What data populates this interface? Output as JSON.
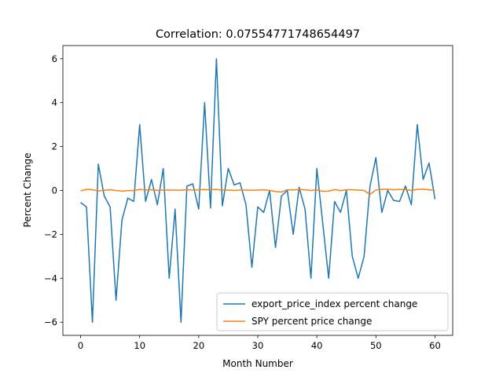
{
  "chart_data": {
    "type": "line",
    "title": "Correlation: 0.07554771748654497",
    "xlabel": "Month Number",
    "ylabel": "Percent Change",
    "xlim": [
      -3,
      63
    ],
    "ylim": [
      -6.6,
      6.6
    ],
    "xticks": [
      0,
      10,
      20,
      30,
      40,
      50,
      60
    ],
    "yticks": [
      -6,
      -4,
      -2,
      0,
      2,
      4,
      6
    ],
    "xtick_labels": [
      "0",
      "10",
      "20",
      "30",
      "40",
      "50",
      "60"
    ],
    "ytick_labels": [
      "−6",
      "−4",
      "−2",
      "0",
      "2",
      "4",
      "6"
    ],
    "grid": false,
    "legend_position": "lower-right",
    "series": [
      {
        "name": "export_price_index percent change",
        "color": "#1f77b4",
        "x": [
          0,
          1,
          2,
          3,
          4,
          5,
          6,
          7,
          8,
          9,
          10,
          11,
          12,
          13,
          14,
          15,
          16,
          17,
          18,
          19,
          20,
          21,
          22,
          23,
          24,
          25,
          26,
          27,
          28,
          29,
          30,
          31,
          32,
          33,
          34,
          35,
          36,
          37,
          38,
          39,
          40,
          41,
          42,
          43,
          44,
          45,
          46,
          47,
          48,
          49,
          50,
          51,
          52,
          53,
          54,
          55,
          56,
          57,
          58,
          59,
          60
        ],
        "values": [
          -0.55,
          -0.75,
          -6.0,
          1.2,
          -0.25,
          -0.75,
          -5.0,
          -1.35,
          -0.35,
          -0.5,
          3.0,
          -0.5,
          0.5,
          -0.65,
          1.0,
          -4.0,
          -0.85,
          -6.0,
          0.2,
          0.3,
          -0.85,
          4.0,
          -0.8,
          6.0,
          -0.7,
          1.0,
          0.25,
          0.35,
          -0.65,
          -3.5,
          -0.75,
          -1.0,
          0.0,
          -2.6,
          -0.25,
          0.0,
          -2.0,
          0.15,
          -0.85,
          -4.0,
          1.0,
          -1.5,
          -4.0,
          -0.5,
          -1.0,
          0.0,
          -3.0,
          -4.0,
          -3.0,
          0.2,
          1.5,
          -1.0,
          0.0,
          -0.45,
          -0.5,
          0.2,
          -0.65,
          3.0,
          0.5,
          1.25,
          -0.4
        ]
      },
      {
        "name": "SPY percent price change",
        "color": "#ff7f0e",
        "x": [
          0,
          1,
          2,
          3,
          4,
          5,
          6,
          7,
          8,
          9,
          10,
          11,
          12,
          13,
          14,
          15,
          16,
          17,
          18,
          19,
          20,
          21,
          22,
          23,
          24,
          25,
          26,
          27,
          28,
          29,
          30,
          31,
          32,
          33,
          34,
          35,
          36,
          37,
          38,
          39,
          40,
          41,
          42,
          43,
          44,
          45,
          46,
          47,
          48,
          49,
          50,
          51,
          52,
          53,
          54,
          55,
          56,
          57,
          58,
          59,
          60
        ],
        "values": [
          -0.02,
          0.05,
          0.03,
          -0.02,
          0.01,
          0.03,
          0.0,
          -0.03,
          -0.01,
          0.0,
          0.05,
          0.02,
          0.03,
          0.0,
          0.02,
          0.02,
          0.02,
          0.01,
          0.03,
          0.02,
          0.03,
          0.04,
          0.03,
          0.05,
          0.01,
          0.02,
          0.0,
          0.02,
          0.02,
          0.01,
          0.02,
          0.03,
          0.0,
          -0.05,
          -0.07,
          0.03,
          0.02,
          0.05,
          0.03,
          0.0,
          0.03,
          -0.04,
          -0.03,
          0.04,
          -0.01,
          0.03,
          0.03,
          0.02,
          0.0,
          -0.18,
          0.02,
          0.05,
          0.06,
          0.03,
          0.05,
          0.04,
          0.0,
          0.05,
          0.06,
          0.03,
          0.0
        ]
      }
    ]
  }
}
